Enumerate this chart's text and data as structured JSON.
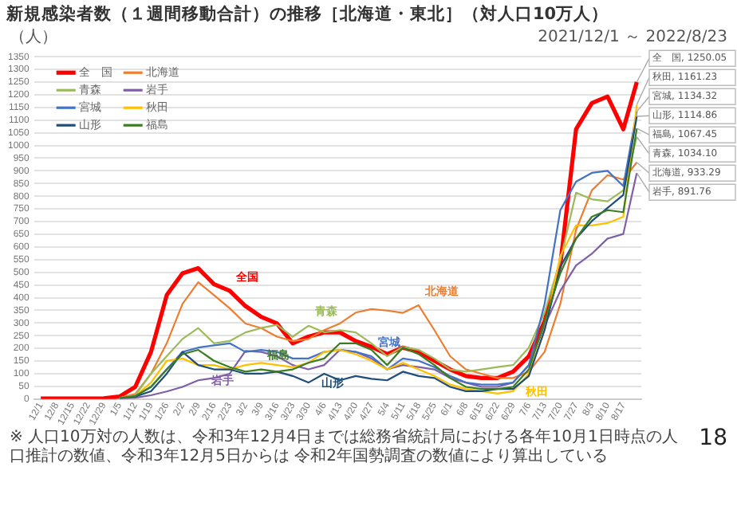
{
  "chart_data": {
    "type": "line",
    "title": "新規感染者数（１週間移動合計）の推移［北海道・東北］（対人口10万人）",
    "subtitle": "2021/12/1 ～ 2022/8/23",
    "ylabel": "（人）",
    "x": [
      "2021-12-01",
      "2021-12-08",
      "2021-12-15",
      "2021-12-22",
      "2021-12-29",
      "2022-01-05",
      "2022-01-12",
      "2022-01-19",
      "2022-01-26",
      "2022-02-02",
      "2022-02-09",
      "2022-02-16",
      "2022-02-23",
      "2022-03-02",
      "2022-03-09",
      "2022-03-16",
      "2022-03-23",
      "2022-03-30",
      "2022-04-06",
      "2022-04-13",
      "2022-04-20",
      "2022-04-27",
      "2022-05-04",
      "2022-05-11",
      "2022-05-18",
      "2022-05-25",
      "2022-06-01",
      "2022-06-08",
      "2022-06-15",
      "2022-06-22",
      "2022-06-29",
      "2022-07-06",
      "2022-07-13",
      "2022-07-20",
      "2022-07-27",
      "2022-08-03",
      "2022-08-10",
      "2022-08-17",
      "2022-08-23"
    ],
    "series": [
      {
        "name": "全　国",
        "color": "#ff0000",
        "values": [
          2,
          2,
          2,
          2,
          3,
          10,
          48,
          186,
          410,
          496,
          516,
          453,
          427,
          367,
          324,
          298,
          220,
          246,
          263,
          263,
          229,
          206,
          177,
          203,
          186,
          151,
          117,
          91,
          83,
          83,
          108,
          169,
          306,
          530,
          1064,
          1167,
          1193,
          1064,
          1250.05
        ]
      },
      {
        "name": "北海道",
        "color": "#ed7d31",
        "values": [
          null,
          null,
          null,
          null,
          null,
          5,
          20,
          100,
          220,
          375,
          461,
          410,
          358,
          298,
          280,
          246,
          229,
          237,
          272,
          298,
          341,
          355,
          349,
          340,
          370,
          272,
          169,
          117,
          100,
          83,
          83,
          108,
          186,
          375,
          668,
          823,
          883,
          866,
          933.29
        ]
      },
      {
        "name": "青森",
        "color": "#9bbb59",
        "values": [
          null,
          null,
          null,
          null,
          null,
          4,
          15,
          100,
          169,
          237,
          280,
          220,
          229,
          263,
          280,
          293,
          246,
          289,
          263,
          272,
          263,
          220,
          169,
          206,
          194,
          160,
          117,
          108,
          117,
          126,
          134,
          203,
          341,
          547,
          814,
          788,
          780,
          823,
          1034.1
        ]
      },
      {
        "name": "岩手",
        "color": "#7f5fa8",
        "values": [
          null,
          null,
          null,
          null,
          null,
          2,
          5,
          15,
          30,
          48,
          74,
          83,
          100,
          190,
          186,
          169,
          134,
          117,
          134,
          194,
          186,
          160,
          117,
          134,
          126,
          117,
          83,
          65,
          48,
          48,
          65,
          134,
          289,
          427,
          527,
          573,
          633,
          651,
          891.76
        ]
      },
      {
        "name": "宮城",
        "color": "#4472c4",
        "values": [
          null,
          null,
          null,
          null,
          null,
          4,
          12,
          48,
          117,
          186,
          203,
          212,
          220,
          186,
          194,
          186,
          160,
          160,
          186,
          194,
          186,
          169,
          117,
          160,
          151,
          126,
          91,
          65,
          57,
          57,
          65,
          134,
          375,
          745,
          857,
          892,
          900,
          840,
          1134.32
        ]
      },
      {
        "name": "秋田",
        "color": "#ffc000",
        "values": [
          null,
          null,
          null,
          null,
          null,
          4,
          12,
          65,
          151,
          160,
          134,
          134,
          117,
          134,
          143,
          134,
          126,
          143,
          186,
          194,
          177,
          151,
          117,
          143,
          117,
          91,
          57,
          40,
          31,
          22,
          31,
          100,
          272,
          565,
          685,
          685,
          694,
          719,
          1161.23
        ]
      },
      {
        "name": "山形",
        "color": "#1f4e79",
        "values": [
          null,
          null,
          null,
          null,
          null,
          4,
          10,
          31,
          100,
          186,
          134,
          117,
          117,
          100,
          100,
          108,
          91,
          65,
          100,
          74,
          91,
          80,
          74,
          108,
          91,
          83,
          48,
          31,
          31,
          40,
          40,
          91,
          272,
          521,
          633,
          702,
          754,
          805,
          1114.86
        ]
      },
      {
        "name": "福島",
        "color": "#3a7d22",
        "values": [
          null,
          null,
          null,
          null,
          null,
          4,
          12,
          48,
          117,
          177,
          194,
          151,
          126,
          108,
          117,
          108,
          117,
          143,
          160,
          220,
          220,
          194,
          134,
          203,
          177,
          134,
          83,
          48,
          40,
          40,
          48,
          117,
          306,
          496,
          633,
          719,
          745,
          737,
          1067.45
        ]
      }
    ],
    "xlim": [
      "2021-11-28",
      "2022-08-25"
    ],
    "xticks": [
      {
        "value": "2021-12-01",
        "label": "12/1"
      },
      {
        "value": "2021-12-08",
        "label": "12/8"
      },
      {
        "value": "2021-12-15",
        "label": "12/15"
      },
      {
        "value": "2021-12-22",
        "label": "12/22"
      },
      {
        "value": "2021-12-29",
        "label": "12/29"
      },
      {
        "value": "2022-01-05",
        "label": "1/5"
      },
      {
        "value": "2022-01-12",
        "label": "1/12"
      },
      {
        "value": "2022-01-19",
        "label": "1/19"
      },
      {
        "value": "2022-01-26",
        "label": "1/26"
      },
      {
        "value": "2022-02-02",
        "label": "2/2"
      },
      {
        "value": "2022-02-09",
        "label": "2/9"
      },
      {
        "value": "2022-02-16",
        "label": "2/16"
      },
      {
        "value": "2022-02-23",
        "label": "2/23"
      },
      {
        "value": "2022-03-02",
        "label": "3/2"
      },
      {
        "value": "2022-03-09",
        "label": "3/9"
      },
      {
        "value": "2022-03-16",
        "label": "3/16"
      },
      {
        "value": "2022-03-23",
        "label": "3/23"
      },
      {
        "value": "2022-03-30",
        "label": "3/30"
      },
      {
        "value": "2022-04-06",
        "label": "4/6"
      },
      {
        "value": "2022-04-13",
        "label": "4/13"
      },
      {
        "value": "2022-04-20",
        "label": "4/20"
      },
      {
        "value": "2022-04-27",
        "label": "4/27"
      },
      {
        "value": "2022-05-04",
        "label": "5/4"
      },
      {
        "value": "2022-05-11",
        "label": "5/11"
      },
      {
        "value": "2022-05-18",
        "label": "5/18"
      },
      {
        "value": "2022-05-25",
        "label": "5/25"
      },
      {
        "value": "2022-06-01",
        "label": "6/1"
      },
      {
        "value": "2022-06-08",
        "label": "6/8"
      },
      {
        "value": "2022-06-15",
        "label": "6/15"
      },
      {
        "value": "2022-06-22",
        "label": "6/22"
      },
      {
        "value": "2022-06-29",
        "label": "6/29"
      },
      {
        "value": "2022-07-06",
        "label": "7/6"
      },
      {
        "value": "2022-07-13",
        "label": "7/13"
      },
      {
        "value": "2022-07-20",
        "label": "7/20"
      },
      {
        "value": "2022-07-27",
        "label": "7/27"
      },
      {
        "value": "2022-08-03",
        "label": "8/3"
      },
      {
        "value": "2022-08-10",
        "label": "8/10"
      },
      {
        "value": "2022-08-17",
        "label": "8/17"
      }
    ],
    "ylim": [
      0,
      1350
    ],
    "yticks": [
      0,
      50,
      100,
      150,
      200,
      250,
      300,
      350,
      400,
      450,
      500,
      550,
      600,
      650,
      700,
      750,
      800,
      850,
      900,
      950,
      1000,
      1050,
      1100,
      1150,
      1200,
      1250,
      1300,
      1350
    ],
    "grid": "y",
    "legend": "top left",
    "marker": "none",
    "line_style": "solid",
    "annotations": [
      {
        "text": "全国",
        "x": "2022-02-23",
        "y": 427
      },
      {
        "text": "北海道",
        "x": "2022-05-18",
        "y": 370
      },
      {
        "text": "青森",
        "x": "2022-03-30",
        "y": 289
      },
      {
        "text": "岩手",
        "x": "2022-02-09",
        "y": 74
      },
      {
        "text": "宮城",
        "x": "2022-04-27",
        "y": 169
      },
      {
        "text": "秋田",
        "x": "2022-06-29",
        "y": 31
      },
      {
        "text": "山形",
        "x": "2022-03-30",
        "y": 65
      },
      {
        "text": "福島",
        "x": "2022-03-09",
        "y": 117
      },
      {
        "text": "全　国, 1250.05",
        "x": "2022-08-23",
        "y": 1250.05
      },
      {
        "text": "秋田, 1161.23",
        "x": "2022-08-23",
        "y": 1161.23
      },
      {
        "text": "宮城, 1134.32",
        "x": "2022-08-23",
        "y": 1134.32
      },
      {
        "text": "山形, 1114.86",
        "x": "2022-08-23",
        "y": 1114.86
      },
      {
        "text": "福島, 1067.45",
        "x": "2022-08-23",
        "y": 1067.45
      },
      {
        "text": "青森, 1034.10",
        "x": "2022-08-23",
        "y": 1034.1
      },
      {
        "text": "北海道, 933.29",
        "x": "2022-08-23",
        "y": 933.29
      },
      {
        "text": "岩手, 891.76",
        "x": "2022-08-23",
        "y": 891.76
      },
      "※ 人口10万対の人数は、令和3年12月4日までは総務省統計局における各年10月1日時点の人口推計の数値、令和3年12月5日からは 令和2年国勢調査の数値により算出している",
      "18"
    ]
  }
}
